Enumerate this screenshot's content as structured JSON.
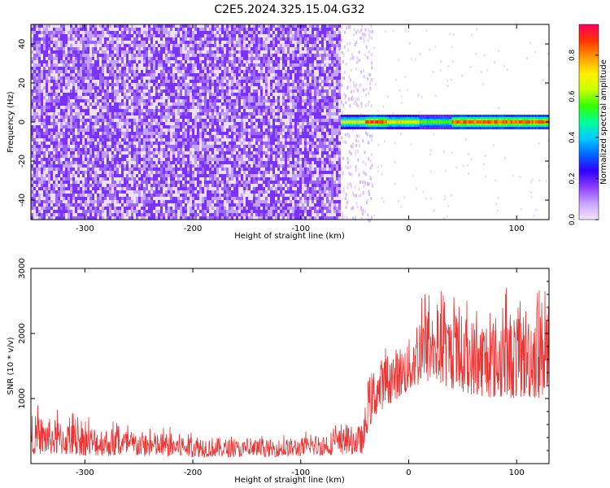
{
  "title": "C2E5.2024.325.15.04.G32",
  "chart_data": [
    {
      "type": "heatmap",
      "xlabel": "Height of straight line (km)",
      "ylabel": "Frequency (Hz)",
      "xlim": [
        -350,
        130
      ],
      "ylim": [
        -50,
        50
      ],
      "xticks": [
        -300,
        -200,
        -100,
        0,
        100
      ],
      "xtick_labels": [
        "-300",
        "-200",
        "-100",
        "0",
        "100"
      ],
      "yticks": [
        -40,
        -20,
        0,
        20,
        40
      ],
      "ytick_labels": [
        "-40",
        "-20",
        "0",
        "20",
        "40"
      ],
      "colorbar": {
        "label": "Normalized spectral amplitude",
        "ticks": [
          0.0,
          0.2,
          0.4,
          0.6,
          0.8
        ],
        "tick_labels": [
          "0.0",
          "0.2",
          "0.4",
          "0.6",
          "0.8"
        ],
        "range": [
          0,
          0.95
        ],
        "colormap": [
          "#f4e4ff",
          "#c9a3ff",
          "#8b3dff",
          "#2f00ff",
          "#0066ff",
          "#00ccff",
          "#00ff99",
          "#33ff00",
          "#ccff00",
          "#ffee00",
          "#ff9900",
          "#ff3300",
          "#ff0066"
        ]
      },
      "noise_region_x": [
        -350,
        -63
      ],
      "noise_amplitude": 0.1,
      "signal_x_start": -63,
      "signal_center_freq": 0,
      "signal_segments": [
        {
          "x": [
            -63,
            -40
          ],
          "amplitude": 0.75
        },
        {
          "x": [
            -40,
            -20
          ],
          "amplitude": 0.9
        },
        {
          "x": [
            -20,
            10
          ],
          "amplitude": 0.75
        },
        {
          "x": [
            10,
            40
          ],
          "amplitude": 0.6
        },
        {
          "x": [
            40,
            130
          ],
          "amplitude": 0.9
        }
      ],
      "grid": false
    },
    {
      "type": "line",
      "xlabel": "Height of straight line (km)",
      "ylabel": "SNR (10 * v/v)",
      "xlim": [
        -350,
        130
      ],
      "ylim": [
        0,
        3000
      ],
      "xticks": [
        -300,
        -200,
        -100,
        0,
        100
      ],
      "xtick_labels": [
        "-300",
        "-200",
        "-100",
        "0",
        "100"
      ],
      "yticks": [
        1000,
        2000,
        3000
      ],
      "ytick_labels": [
        "1000",
        "2000",
        "3000"
      ],
      "color": "#ee3333",
      "grid": false,
      "series": [
        {
          "x": [
            -350,
            -300,
            -250,
            -200,
            -150,
            -100,
            -60,
            -42,
            -38,
            -30,
            -20,
            -10,
            0,
            10,
            20,
            40,
            60,
            80,
            100,
            120,
            130
          ],
          "low": [
            150,
            120,
            110,
            100,
            100,
            110,
            140,
            150,
            500,
            750,
            900,
            1000,
            1100,
            1200,
            1250,
            1150,
            1050,
            1000,
            1000,
            1000,
            1050
          ],
          "high": [
            750,
            600,
            500,
            450,
            350,
            400,
            550,
            600,
            1300,
            1550,
            1700,
            1800,
            1900,
            2400,
            2450,
            2350,
            2250,
            2300,
            2400,
            2550,
            2600
          ],
          "mean": [
            350,
            330,
            300,
            260,
            240,
            250,
            300,
            350,
            850,
            1100,
            1250,
            1400,
            1550,
            1750,
            1800,
            1750,
            1650,
            1600,
            1650,
            1700,
            1700
          ]
        }
      ]
    }
  ]
}
